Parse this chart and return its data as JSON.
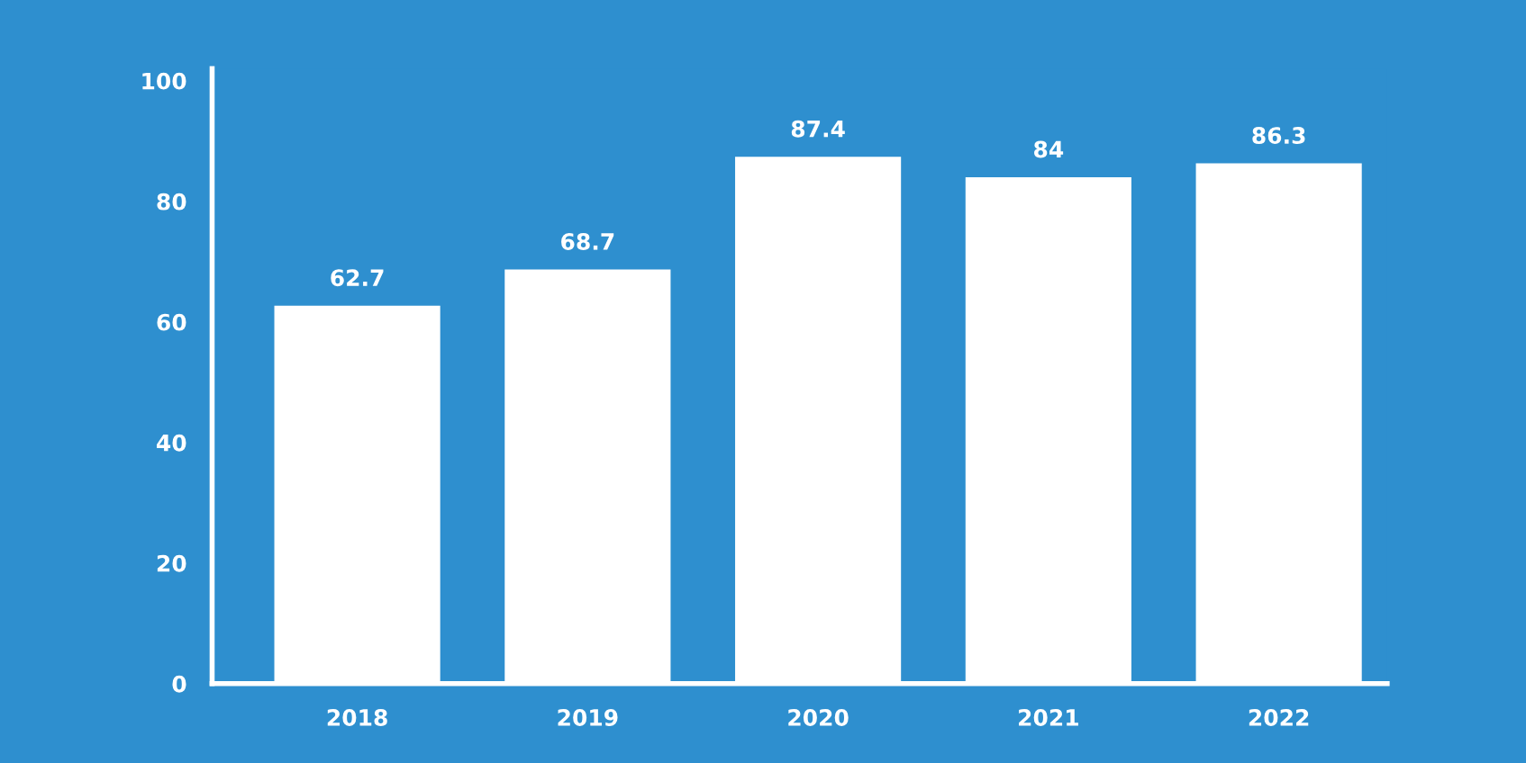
{
  "chart_data": {
    "type": "bar",
    "categories": [
      "2018",
      "2019",
      "2020",
      "2021",
      "2022"
    ],
    "values": [
      62.7,
      68.7,
      87.4,
      84,
      86.3
    ],
    "color": "#ffffff",
    "ylim": [
      0,
      102
    ],
    "yticks": [
      0,
      20,
      40,
      60,
      80,
      100
    ],
    "grid": false,
    "data_labels": true,
    "legend": false
  }
}
